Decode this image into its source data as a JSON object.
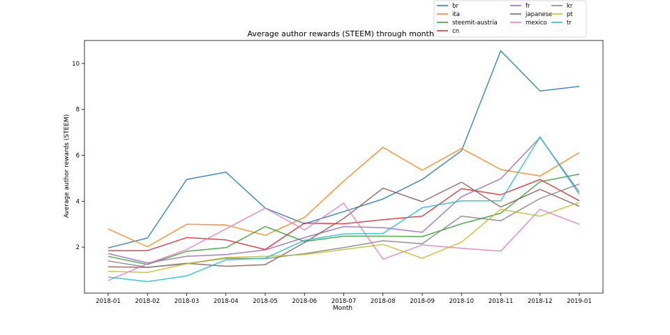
{
  "chart_data": {
    "type": "line",
    "title": "Average author rewards (STEEM) through months",
    "xlabel": "Month",
    "ylabel": "Average author rewards (STEEM)",
    "ylim": [
      0,
      11
    ],
    "yticks": [
      2,
      4,
      6,
      8,
      10
    ],
    "grid": false,
    "legend_placement": "top-right, above the plot area, 3 columns",
    "categories": [
      "2018-01",
      "2018-02",
      "2018-03",
      "2018-04",
      "2018-05",
      "2018-06",
      "2018-07",
      "2018-08",
      "2018-09",
      "2018-10",
      "2018-11",
      "2018-12",
      "2019-01"
    ],
    "series": [
      {
        "name": "br",
        "color": "#1f77b4",
        "values": [
          1.97,
          2.4,
          4.95,
          5.27,
          3.7,
          3.02,
          3.55,
          4.1,
          4.95,
          6.2,
          10.55,
          8.8,
          9.0
        ]
      },
      {
        "name": "ita",
        "color": "#ff7f0e",
        "values": [
          2.8,
          2.02,
          3.0,
          2.97,
          2.52,
          3.3,
          4.88,
          6.35,
          5.35,
          6.3,
          5.38,
          5.1,
          6.12
        ]
      },
      {
        "name": "steemit-austria",
        "color": "#2ca02c",
        "values": [
          1.6,
          1.25,
          1.82,
          1.98,
          2.9,
          2.25,
          2.48,
          2.48,
          2.46,
          3.02,
          3.48,
          4.85,
          5.18
        ]
      },
      {
        "name": "cn",
        "color": "#d62728",
        "values": [
          1.85,
          1.85,
          2.42,
          2.32,
          1.9,
          3.05,
          3.02,
          3.2,
          3.35,
          4.55,
          4.28,
          4.95,
          4.02
        ]
      },
      {
        "name": "fr",
        "color": "#9467bd",
        "values": [
          1.72,
          1.32,
          1.6,
          1.68,
          1.88,
          2.42,
          2.9,
          2.85,
          2.65,
          4.2,
          4.98,
          6.78,
          4.4
        ]
      },
      {
        "name": "japanese",
        "color": "#8c564b",
        "values": [
          1.15,
          1.12,
          1.3,
          1.17,
          1.24,
          2.2,
          3.25,
          4.57,
          3.98,
          4.83,
          3.75,
          4.52,
          3.78
        ]
      },
      {
        "name": "mexico",
        "color": "#e377c2",
        "values": [
          0.55,
          1.28,
          1.9,
          2.8,
          3.7,
          2.75,
          3.92,
          1.48,
          2.1,
          1.95,
          1.83,
          3.65,
          3.0
        ]
      },
      {
        "name": "kr",
        "color": "#7f7f7f",
        "values": [
          1.4,
          1.12,
          1.28,
          1.52,
          1.5,
          1.72,
          1.98,
          2.28,
          2.15,
          3.35,
          3.15,
          4.12,
          4.75
        ]
      },
      {
        "name": "pt",
        "color": "#bcbd22",
        "values": [
          0.95,
          0.9,
          1.28,
          1.55,
          1.6,
          1.68,
          1.9,
          2.12,
          1.52,
          2.22,
          3.65,
          3.35,
          3.95
        ]
      },
      {
        "name": "tr",
        "color": "#17becf",
        "values": [
          0.7,
          0.5,
          0.75,
          1.45,
          1.52,
          2.3,
          2.58,
          2.6,
          3.72,
          4.02,
          4.02,
          6.8,
          4.3
        ]
      }
    ]
  }
}
